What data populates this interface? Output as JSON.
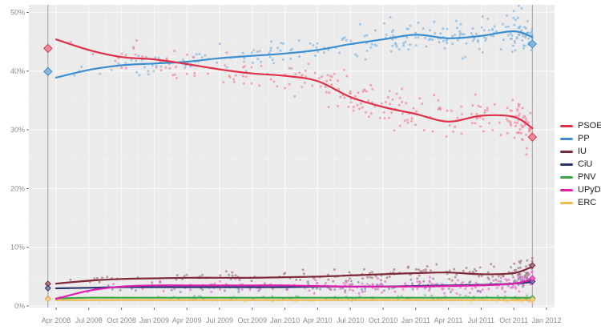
{
  "chart_data": {
    "type": "scatter",
    "title": "",
    "xlabel": "",
    "ylabel": "",
    "grid": true,
    "legend_position": "right",
    "y_tick_labels": [
      "0%",
      "10%",
      "20%",
      "30%",
      "40%",
      "50%"
    ],
    "y_tick_values": [
      0,
      10,
      20,
      30,
      40,
      50
    ],
    "y_minor_values": [
      5,
      15,
      25,
      35,
      45
    ],
    "ylim": [
      0,
      51.3
    ],
    "x_tick_labels": [
      "Apr 2008",
      "Jul 2008",
      "Oct 2008",
      "Jan 2009",
      "Apr 2009",
      "Jul 2009",
      "Oct 2009",
      "Jan 2010",
      "Apr 2010",
      "Jul 2010",
      "Oct 2010",
      "Jan 2011",
      "Apr 2011",
      "Jul 2011",
      "Oct 2011",
      "Jan 2012"
    ],
    "x_tick_months": [
      0,
      3,
      6,
      9,
      12,
      15,
      18,
      21,
      24,
      27,
      30,
      33,
      36,
      39,
      42,
      45
    ],
    "trend_months": [
      0,
      3,
      6,
      9,
      12,
      15,
      18,
      21,
      24,
      27,
      30,
      33,
      36,
      39,
      42,
      43.7
    ],
    "series": [
      {
        "name": "PSOE",
        "line_color": "#e0314b",
        "point_color": "#ef8295",
        "trend": [
          45.4,
          43.6,
          42.4,
          42.0,
          41.2,
          40.3,
          39.6,
          39.2,
          38.3,
          35.6,
          33.9,
          32.7,
          31.4,
          32.4,
          32.2,
          30.3
        ],
        "points_count": 260,
        "jitter": 4.0
      },
      {
        "name": "PP",
        "line_color": "#3c8ecf",
        "point_color": "#7fb2dd",
        "trend": [
          38.9,
          40.2,
          41.0,
          41.3,
          41.6,
          42.2,
          42.6,
          43.0,
          43.6,
          44.6,
          45.4,
          46.2,
          45.6,
          46.0,
          46.8,
          45.8
        ],
        "points_count": 260,
        "jitter": 3.2
      },
      {
        "name": "IU",
        "line_color": "#7e2a3a",
        "point_color": "#a2747e",
        "trend": [
          3.8,
          4.3,
          4.6,
          4.7,
          4.8,
          4.8,
          4.8,
          4.9,
          5.0,
          5.2,
          5.4,
          5.6,
          5.7,
          5.4,
          5.6,
          6.7
        ],
        "points_count": 160,
        "jitter": 1.6
      },
      {
        "name": "CiU",
        "line_color": "#27356e",
        "point_color": "#7b84a8",
        "trend": [
          3.0,
          3.1,
          3.2,
          3.2,
          3.2,
          3.2,
          3.2,
          3.2,
          3.3,
          3.3,
          3.3,
          3.4,
          3.5,
          3.6,
          3.8,
          4.1
        ],
        "points_count": 110,
        "jitter": 1.2
      },
      {
        "name": "PNV",
        "line_color": "#3aa648",
        "point_color": "#86bf8e",
        "trend": [
          1.3,
          1.4,
          1.4,
          1.4,
          1.4,
          1.4,
          1.4,
          1.4,
          1.4,
          1.4,
          1.4,
          1.4,
          1.4,
          1.4,
          1.4,
          1.4
        ],
        "points_count": 80,
        "jitter": 0.5
      },
      {
        "name": "UPyD",
        "line_color": "#e01fb0",
        "point_color": "#ea68cb",
        "trend": [
          1.2,
          2.6,
          3.3,
          3.5,
          3.5,
          3.5,
          3.5,
          3.5,
          3.4,
          3.3,
          3.3,
          3.3,
          3.4,
          3.5,
          3.8,
          4.6
        ],
        "points_count": 170,
        "jitter": 1.4
      },
      {
        "name": "ERC",
        "line_color": "#edba4e",
        "point_color": "#f3d492",
        "trend": [
          1.0,
          1.0,
          1.0,
          1.0,
          1.0,
          1.0,
          1.0,
          1.0,
          1.0,
          1.0,
          1.0,
          1.0,
          1.0,
          1.0,
          1.0,
          1.0
        ],
        "points_count": 80,
        "jitter": 0.4
      }
    ],
    "elections": [
      {
        "date_label": "Mar 2008",
        "month": -0.75,
        "results": {
          "PSOE": 43.87,
          "PP": 39.94,
          "IU": 3.77,
          "CiU": 3.03,
          "PNV": 1.19,
          "UPyD": 1.19,
          "ERC": 1.16
        }
      },
      {
        "date_label": "Nov 2011",
        "month": 43.7,
        "results": {
          "PSOE": 28.76,
          "PP": 44.63,
          "IU": 6.92,
          "CiU": 4.17,
          "PNV": 1.33,
          "UPyD": 4.7,
          "ERC": 1.06
        }
      }
    ]
  },
  "legend": {
    "entries": [
      "PSOE",
      "PP",
      "IU",
      "CiU",
      "PNV",
      "UPyD",
      "ERC"
    ]
  },
  "style_colors": {
    "panel_background": "#ebebeb",
    "major_grid": "#f8f8f8",
    "minor_grid": "#f2f2f2",
    "election_line": "#a0a0a0",
    "tick_mark": "#666666",
    "tick_text": "#8c8c8c"
  }
}
